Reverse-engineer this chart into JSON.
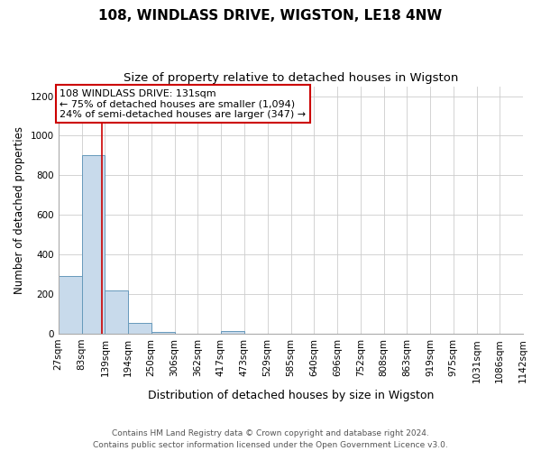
{
  "title1": "108, WINDLASS DRIVE, WIGSTON, LE18 4NW",
  "title2": "Size of property relative to detached houses in Wigston",
  "xlabel": "Distribution of detached houses by size in Wigston",
  "ylabel": "Number of detached properties",
  "bin_edges": [
    27,
    83,
    139,
    194,
    250,
    306,
    362,
    417,
    473,
    529,
    585,
    640,
    696,
    752,
    808,
    863,
    919,
    975,
    1031,
    1086,
    1142
  ],
  "bar_heights": [
    290,
    900,
    220,
    55,
    10,
    0,
    0,
    15,
    0,
    0,
    0,
    0,
    0,
    0,
    0,
    0,
    0,
    0,
    0,
    0
  ],
  "bar_color": "#c8daeb",
  "bar_edge_color": "#6699bb",
  "property_size": 131,
  "red_line_color": "#cc0000",
  "annotation_line1": "108 WINDLASS DRIVE: 131sqm",
  "annotation_line2": "← 75% of detached houses are smaller (1,094)",
  "annotation_line3": "24% of semi-detached houses are larger (347) →",
  "annotation_box_color": "#ffffff",
  "annotation_box_edge_color": "#cc0000",
  "ylim": [
    0,
    1250
  ],
  "yticks": [
    0,
    200,
    400,
    600,
    800,
    1000,
    1200
  ],
  "footnote": "Contains HM Land Registry data © Crown copyright and database right 2024.\nContains public sector information licensed under the Open Government Licence v3.0.",
  "background_color": "#ffffff",
  "plot_background_color": "#ffffff",
  "grid_color": "#cccccc",
  "title1_fontsize": 11,
  "title2_fontsize": 9.5,
  "xlabel_fontsize": 9,
  "ylabel_fontsize": 8.5,
  "tick_fontsize": 7.5,
  "annotation_fontsize": 8,
  "footnote_fontsize": 6.5
}
